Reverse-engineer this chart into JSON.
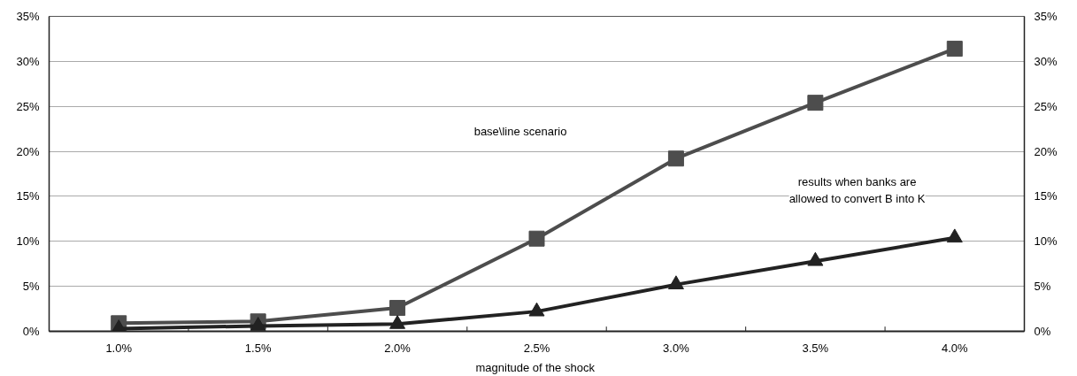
{
  "chart_data": {
    "type": "line",
    "xlabel": "magnitude  of the shock",
    "categories": [
      "1.0%",
      "1.5%",
      "2.0%",
      "2.5%",
      "3.0%",
      "3.5%",
      "4.0%"
    ],
    "series": [
      {
        "color": "#4d4d4d",
        "marker": "square",
        "values": [
          0.9,
          1.1,
          2.6,
          10.3,
          19.2,
          25.4,
          31.4
        ]
      },
      {
        "color": "#222222",
        "marker": "triangle",
        "values": [
          0.3,
          0.6,
          0.8,
          2.2,
          5.2,
          7.8,
          10.4
        ]
      }
    ],
    "ylim": [
      0,
      35
    ],
    "yticks": [
      {
        "value": 0,
        "label": "0%"
      },
      {
        "value": 5,
        "label": "5%"
      },
      {
        "value": 10,
        "label": "10%"
      },
      {
        "value": 15,
        "label": "15%"
      },
      {
        "value": 20,
        "label": "20%"
      },
      {
        "value": 25,
        "label": "25%"
      },
      {
        "value": 30,
        "label": "30%"
      },
      {
        "value": 35,
        "label": "35%"
      }
    ],
    "y2lim": [
      0,
      35
    ],
    "y2ticks": [
      {
        "value": 0,
        "label": "0%"
      },
      {
        "value": 5,
        "label": "5%"
      },
      {
        "value": 10,
        "label": "10%"
      },
      {
        "value": 15,
        "label": "15%"
      },
      {
        "value": 20,
        "label": "20%"
      },
      {
        "value": 25,
        "label": "25%"
      },
      {
        "value": 30,
        "label": "30%"
      },
      {
        "value": 35,
        "label": "35%"
      }
    ],
    "annotations": [
      "base\\line scenario",
      "results when banks are\nallowed to convert B into K"
    ],
    "grid": "y"
  }
}
